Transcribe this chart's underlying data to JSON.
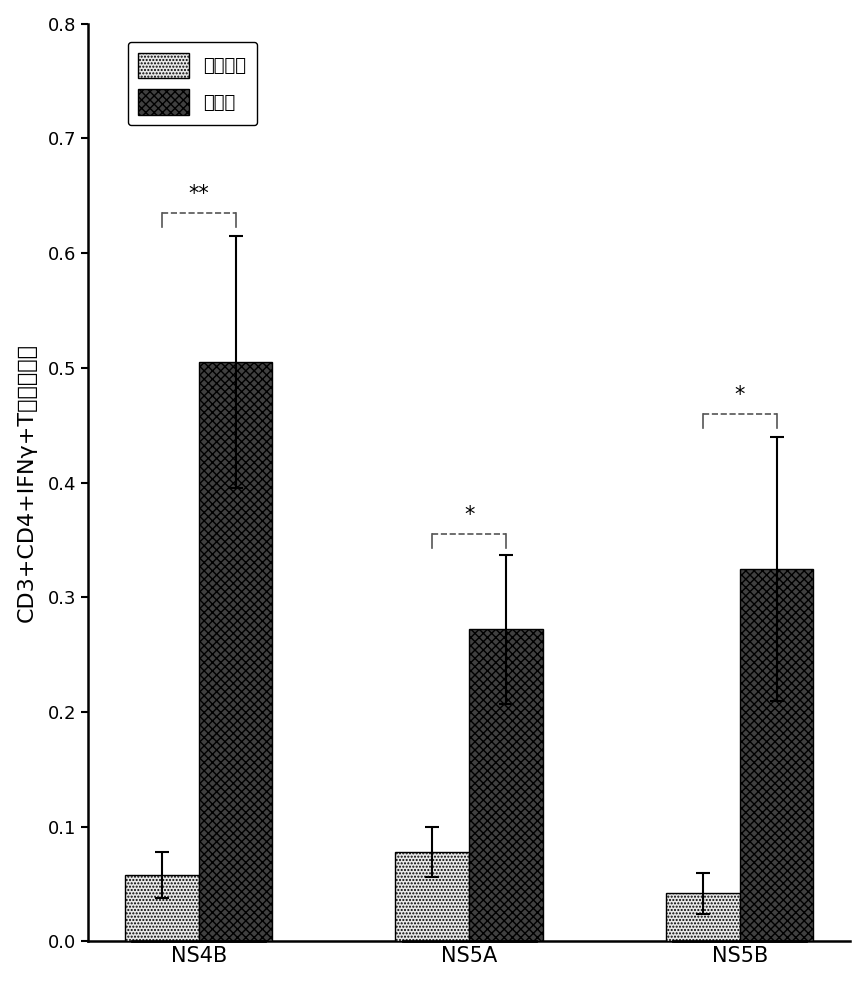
{
  "groups": [
    "NS4B",
    "NS5A",
    "NS5B"
  ],
  "untreated_values": [
    0.058,
    0.078,
    0.042
  ],
  "untreated_errors": [
    0.02,
    0.022,
    0.018
  ],
  "immunized_values": [
    0.505,
    0.272,
    0.325
  ],
  "immunized_errors": [
    0.11,
    0.065,
    0.115
  ],
  "ylabel": "CD3+CD4+IFNγ+T细胞百分数",
  "ylim": [
    0.0,
    0.8
  ],
  "yticks": [
    0.0,
    0.1,
    0.2,
    0.3,
    0.4,
    0.5,
    0.6,
    0.7,
    0.8
  ],
  "legend_labels": [
    "未处理的",
    "免疫的"
  ],
  "significance": {
    "ns4b": "**",
    "ns5a": "*",
    "ns5b": "*"
  },
  "sig_heights": {
    "ns4b": 0.635,
    "ns5a": 0.355,
    "ns5b": 0.46
  },
  "bar_width": 0.3,
  "group_positions": [
    0.0,
    1.1,
    2.2
  ],
  "untreated_hatch": ".....",
  "immunized_hatch": "xxxx",
  "untreated_face_color": "#e8e8e8",
  "immunized_face_color": "#404040",
  "bar_edge_color": "#000000",
  "background_color": "#ffffff",
  "sig_line_color": "#555555",
  "error_cap_size": 5,
  "font_size_ylabel": 16,
  "font_size_ticks": 13,
  "font_size_legend": 13,
  "font_size_sig": 15,
  "font_size_xticklabels": 15,
  "xlim": [
    -0.45,
    2.65
  ]
}
